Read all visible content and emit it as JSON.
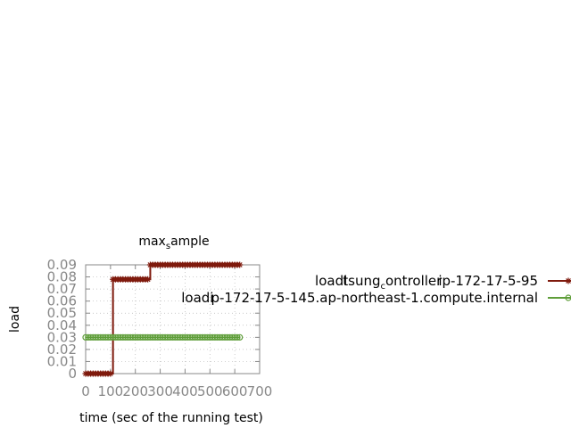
{
  "chart_data": {
    "type": "line",
    "title": {
      "base": "max",
      "sub": "s",
      "rest": "ample"
    },
    "xlabel": "time (sec of the running test)",
    "ylabel": "load",
    "xlim": [
      0,
      700
    ],
    "ylim": [
      0,
      0.09
    ],
    "x_ticks": [
      "0",
      "100",
      "200",
      "300",
      "400",
      "500",
      "600",
      "700"
    ],
    "y_ticks": [
      "0",
      "0.01",
      "0.02",
      "0.03",
      "0.04",
      "0.05",
      "0.06",
      "0.07",
      "0.08",
      "0.09"
    ],
    "grid": true,
    "legend_position": "right",
    "series": [
      {
        "name": {
          "base": "loadl",
          "mid1": "tsung",
          "sub": "c",
          "mid2": "ontroller",
          "tail": "ip-172-17-5-95"
        },
        "color": "#7f1a0d",
        "marker": "star",
        "x": [
          0,
          10,
          20,
          30,
          40,
          50,
          60,
          70,
          80,
          90,
          100,
          110,
          120,
          130,
          140,
          150,
          160,
          170,
          180,
          190,
          200,
          210,
          220,
          230,
          240,
          250,
          260,
          270,
          280,
          290,
          300,
          310,
          320,
          330,
          340,
          350,
          360,
          370,
          380,
          390,
          400,
          410,
          420,
          430,
          440,
          450,
          460,
          470,
          480,
          490,
          500,
          510,
          520,
          530,
          540,
          550,
          560,
          570,
          580,
          590,
          600,
          610,
          620
        ],
        "y": [
          0,
          0,
          0,
          0,
          0,
          0,
          0,
          0,
          0,
          0,
          0,
          0.078,
          0.078,
          0.078,
          0.078,
          0.078,
          0.078,
          0.078,
          0.078,
          0.078,
          0.078,
          0.078,
          0.078,
          0.078,
          0.078,
          0.078,
          0.09,
          0.09,
          0.09,
          0.09,
          0.09,
          0.09,
          0.09,
          0.09,
          0.09,
          0.09,
          0.09,
          0.09,
          0.09,
          0.09,
          0.09,
          0.09,
          0.09,
          0.09,
          0.09,
          0.09,
          0.09,
          0.09,
          0.09,
          0.09,
          0.09,
          0.09,
          0.09,
          0.09,
          0.09,
          0.09,
          0.09,
          0.09,
          0.09,
          0.09,
          0.09,
          0.09,
          0.09
        ]
      },
      {
        "name": {
          "base": "loadi",
          "tail": "p-172-17-5-145.ap-northeast-1.compute.internal"
        },
        "color": "#5f9e3a",
        "marker": "circle",
        "x": [
          0,
          10,
          20,
          30,
          40,
          50,
          60,
          70,
          80,
          90,
          100,
          110,
          120,
          130,
          140,
          150,
          160,
          170,
          180,
          190,
          200,
          210,
          220,
          230,
          240,
          250,
          260,
          270,
          280,
          290,
          300,
          310,
          320,
          330,
          340,
          350,
          360,
          370,
          380,
          390,
          400,
          410,
          420,
          430,
          440,
          450,
          460,
          470,
          480,
          490,
          500,
          510,
          520,
          530,
          540,
          550,
          560,
          570,
          580,
          590,
          600,
          610,
          620
        ],
        "y": [
          0.03,
          0.03,
          0.03,
          0.03,
          0.03,
          0.03,
          0.03,
          0.03,
          0.03,
          0.03,
          0.03,
          0.03,
          0.03,
          0.03,
          0.03,
          0.03,
          0.03,
          0.03,
          0.03,
          0.03,
          0.03,
          0.03,
          0.03,
          0.03,
          0.03,
          0.03,
          0.03,
          0.03,
          0.03,
          0.03,
          0.03,
          0.03,
          0.03,
          0.03,
          0.03,
          0.03,
          0.03,
          0.03,
          0.03,
          0.03,
          0.03,
          0.03,
          0.03,
          0.03,
          0.03,
          0.03,
          0.03,
          0.03,
          0.03,
          0.03,
          0.03,
          0.03,
          0.03,
          0.03,
          0.03,
          0.03,
          0.03,
          0.03,
          0.03,
          0.03,
          0.03,
          0.03,
          0.03
        ]
      }
    ]
  }
}
